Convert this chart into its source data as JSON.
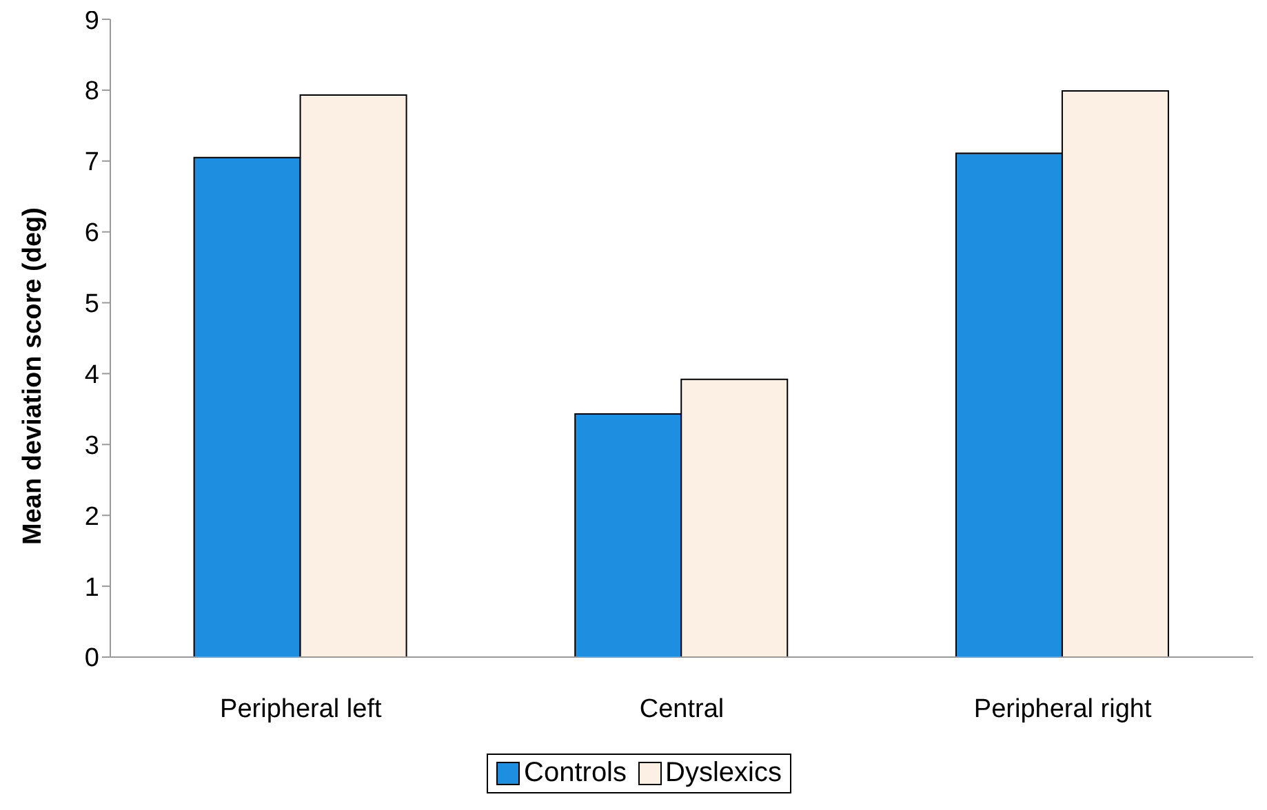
{
  "chart_data": {
    "type": "bar",
    "ylabel": "Mean deviation score (deg)",
    "categories": [
      "Peripheral left",
      "Central",
      "Peripheral right"
    ],
    "series": [
      {
        "name": "Controls",
        "color": "#1e8fe0",
        "values": [
          7.05,
          3.43,
          7.11
        ]
      },
      {
        "name": "Dyslexics",
        "color": "#fcefe4",
        "values": [
          7.93,
          3.92,
          7.99
        ]
      }
    ],
    "ylim": [
      0,
      9
    ],
    "yticks": [
      0,
      1,
      2,
      3,
      4,
      5,
      6,
      7,
      8,
      9
    ],
    "grid": false,
    "legend": "bottom"
  }
}
